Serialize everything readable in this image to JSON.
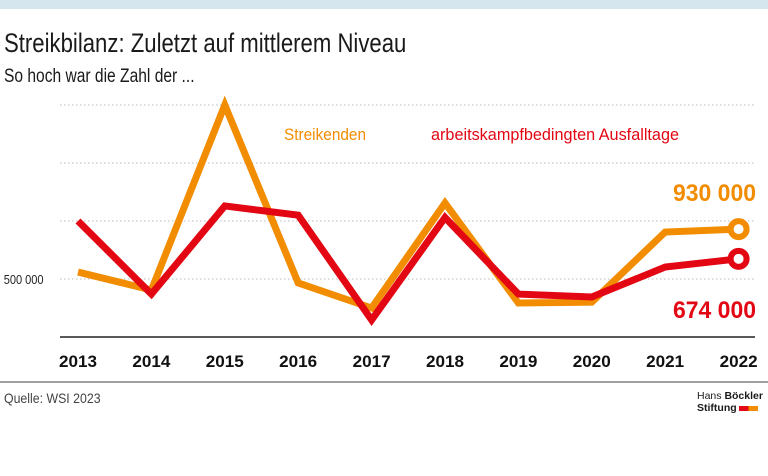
{
  "title": "Streikbilanz: Zuletzt auf mittlerem Niveau",
  "subtitle": "So hoch war die Zahl der ...",
  "source": "Quelle: WSI 2023",
  "logo": {
    "line1_a": "Hans",
    "line1_b": "Böckler",
    "line2": "Stiftung"
  },
  "chart_data": {
    "type": "line",
    "categories": [
      "2013",
      "2014",
      "2015",
      "2016",
      "2017",
      "2018",
      "2019",
      "2020",
      "2021",
      "2022"
    ],
    "ylim": [
      0,
      2000000
    ],
    "yticks": [
      0,
      500000,
      1000000,
      1500000,
      2000000
    ],
    "ytick_labels": {
      "500000": "500 000"
    },
    "grid": true,
    "series": [
      {
        "name": "Streikenden",
        "color": "#f28c00",
        "values": [
          560000,
          405000,
          2000000,
          466000,
          250000,
          1155000,
          293000,
          300000,
          905000,
          930000
        ],
        "end_label": "930 000"
      },
      {
        "name": "arbeitskampfbedingten Ausfalltage",
        "color": "#e30613",
        "values": [
          1000000,
          370000,
          1130000,
          1050000,
          147000,
          1030000,
          370000,
          345000,
          603000,
          674000
        ],
        "end_label": "674 000"
      }
    ]
  }
}
